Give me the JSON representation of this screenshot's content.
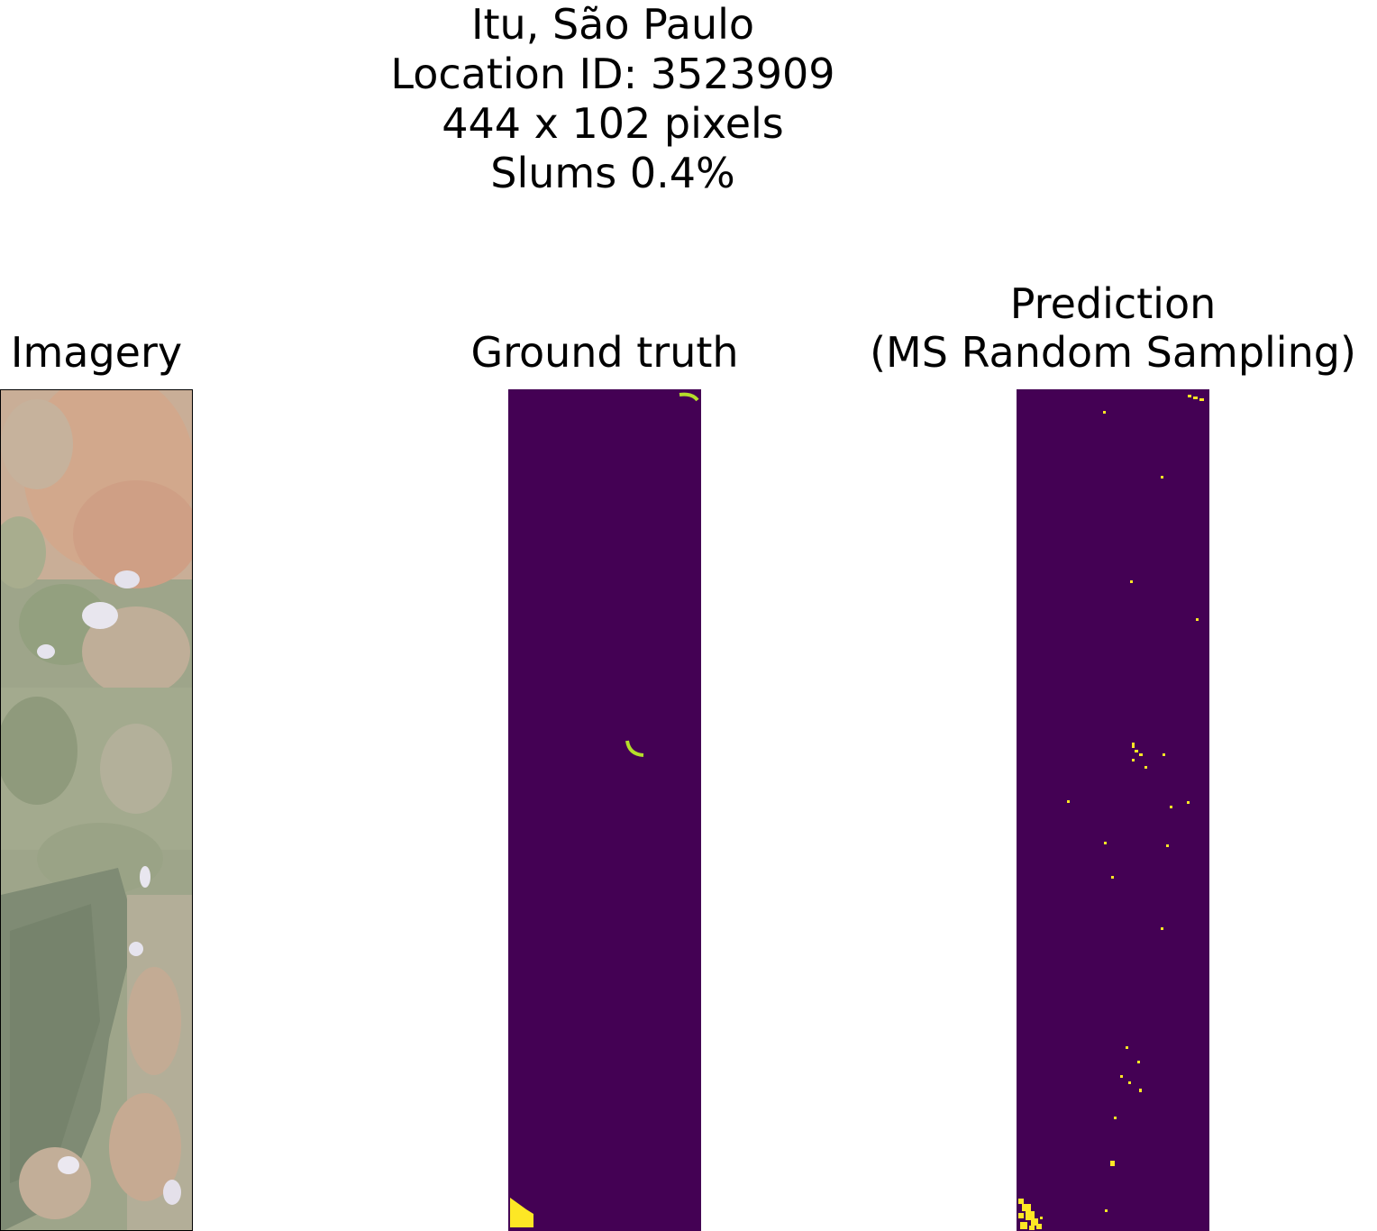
{
  "title": {
    "lines": [
      "Itu, São Paulo",
      "Location ID: 3523909",
      "444 x 102 pixels",
      "Slums 0.4%"
    ]
  },
  "panels": {
    "imagery": {
      "title": "Imagery"
    },
    "ground_truth": {
      "title": "Ground truth"
    },
    "prediction": {
      "title_line1": "Prediction",
      "title_line2": "(MS Random Sampling)"
    }
  },
  "colors": {
    "background_class": "#440154",
    "slum_class": "#fde725",
    "ground_truth_outline": "#b5de2b"
  }
}
